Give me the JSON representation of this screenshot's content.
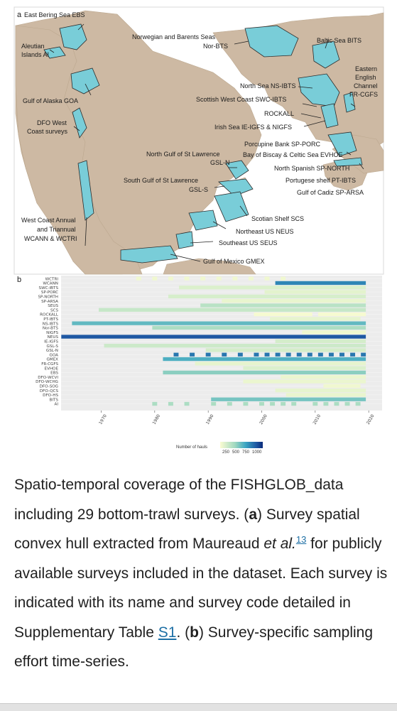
{
  "figure": {
    "panel_a": {
      "tag": "a",
      "title": "East Bering Sea EBS",
      "labels": [
        "Aleutian",
        "Islands AI",
        "Gulf of Alaska GOA",
        "DFO West",
        "Coast surveys",
        "West Coast Annual",
        "and Triannual",
        "WCANN & WCTRI",
        "Norwegian and Barents Seas",
        "Nor-BTS",
        "Baltic Sea BITS",
        "Eastern",
        "English",
        "Channel",
        "FR-CGFS",
        "North Sea NS-IBTS",
        "Scottish West Coast SWC-IBTS",
        "ROCKALL",
        "Irish Sea IE-IGFS & NIGFS",
        "Porcupine Bank SP-PORC",
        "North Gulf of St Lawrence",
        "GSL-N",
        "Bay of Biscay & Celtic Sea EVHOE",
        "North Spanish SP-NORTH",
        "Portugese shelf PT-IBTS",
        "South Gulf of St Lawrence",
        "GSL-S",
        "Gulf of Cadiz SP-ARSA",
        "Scotian Shelf SCS",
        "Northeast US NEUS",
        "Southeast US SEUS",
        "Gulf of Mexico GMEX"
      ],
      "colors": {
        "land": "#cdb9a3",
        "sea": "#ffffff",
        "hull": "#79cdd8",
        "hull_stroke": "#2b2b2b"
      }
    },
    "panel_b": {
      "tag": "b",
      "legend_title": "Number of hauls",
      "legend_ticks": [
        "250",
        "500",
        "750",
        "1000"
      ]
    }
  },
  "chart_data": {
    "type": "heatmap",
    "ylabel": "",
    "xlabel": "",
    "x_ticks": [
      "1970",
      "1980",
      "1990",
      "2000",
      "2010",
      "2020"
    ],
    "xlim": [
      1963,
      2022
    ],
    "colorscale": {
      "min": 0,
      "max": 1000,
      "low": "#fbfcd2",
      "mid": "#5ab9c2",
      "high": "#0b2a7a",
      "empty": "#ececec"
    },
    "surveys": [
      {
        "code": "WCTRI",
        "spans": [
          [
            1977,
            1977,
            40
          ],
          [
            1980,
            1980,
            40
          ],
          [
            1983,
            1983,
            40
          ],
          [
            1986,
            1986,
            40
          ],
          [
            1989,
            1989,
            40
          ],
          [
            1992,
            1992,
            40
          ],
          [
            1995,
            1995,
            40
          ],
          [
            1998,
            1998,
            40
          ],
          [
            2001,
            2001,
            40
          ],
          [
            2004,
            2004,
            40
          ]
        ]
      },
      {
        "code": "WCANN",
        "spans": [
          [
            2003,
            2019,
            700
          ]
        ]
      },
      {
        "code": "SWC-IBTS",
        "spans": [
          [
            1985,
            2019,
            120
          ]
        ]
      },
      {
        "code": "SP-PORC",
        "spans": [
          [
            2001,
            2019,
            90
          ]
        ]
      },
      {
        "code": "SP-NORTH",
        "spans": [
          [
            1983,
            2019,
            140
          ]
        ]
      },
      {
        "code": "SP-ARSA",
        "spans": [
          [
            1993,
            2019,
            70
          ]
        ]
      },
      {
        "code": "SEUS",
        "spans": [
          [
            1989,
            2019,
            250
          ]
        ]
      },
      {
        "code": "SCS",
        "spans": [
          [
            1970,
            2019,
            200
          ]
        ]
      },
      {
        "code": "ROCKALL",
        "spans": [
          [
            1999,
            2009,
            20
          ],
          [
            2011,
            2019,
            20
          ]
        ]
      },
      {
        "code": "PT-IBTS",
        "spans": [
          [
            2002,
            2018,
            80
          ]
        ]
      },
      {
        "code": "NS-IBTS",
        "spans": [
          [
            1965,
            2019,
            500
          ]
        ]
      },
      {
        "code": "Nor-BTS",
        "spans": [
          [
            1980,
            2019,
            300
          ]
        ]
      },
      {
        "code": "NIGFS",
        "spans": [
          [
            2008,
            2019,
            50
          ]
        ]
      },
      {
        "code": "NEUS",
        "spans": [
          [
            1963,
            2019,
            850
          ]
        ]
      },
      {
        "code": "IE-IGFS",
        "spans": [
          [
            2003,
            2019,
            150
          ]
        ]
      },
      {
        "code": "GSL-S",
        "spans": [
          [
            1971,
            2019,
            180
          ]
        ]
      },
      {
        "code": "GSL-N",
        "spans": [
          [
            1990,
            2019,
            150
          ]
        ]
      },
      {
        "code": "GOA",
        "spans": [
          [
            1984,
            1984,
            750
          ],
          [
            1987,
            1987,
            750
          ],
          [
            1990,
            1990,
            750
          ],
          [
            1993,
            1993,
            750
          ],
          [
            1996,
            1996,
            750
          ],
          [
            1999,
            1999,
            750
          ],
          [
            2001,
            2001,
            750
          ],
          [
            2003,
            2003,
            750
          ],
          [
            2005,
            2005,
            750
          ],
          [
            2007,
            2007,
            750
          ],
          [
            2009,
            2009,
            750
          ],
          [
            2011,
            2011,
            750
          ],
          [
            2013,
            2013,
            750
          ],
          [
            2015,
            2015,
            750
          ],
          [
            2017,
            2017,
            750
          ],
          [
            2019,
            2019,
            750
          ]
        ]
      },
      {
        "code": "GMEX",
        "spans": [
          [
            1982,
            2019,
            550
          ]
        ]
      },
      {
        "code": "FR-CGFS",
        "spans": [
          [
            1988,
            2019,
            80
          ]
        ]
      },
      {
        "code": "EVHOE",
        "spans": [
          [
            1997,
            2019,
            120
          ]
        ]
      },
      {
        "code": "EBS",
        "spans": [
          [
            1982,
            2019,
            400
          ]
        ]
      },
      {
        "code": "DFO-WCVI",
        "spans": [
          [
            2004,
            2019,
            60
          ]
        ]
      },
      {
        "code": "DFO-WCHG",
        "spans": [
          [
            1997,
            2019,
            60
          ]
        ]
      },
      {
        "code": "DFO-SOG",
        "spans": [
          [
            2012,
            2018,
            40
          ]
        ]
      },
      {
        "code": "DFO-QCS",
        "spans": [
          [
            2003,
            2019,
            80
          ]
        ]
      },
      {
        "code": "DFO-HS",
        "spans": [
          [
            2005,
            2019,
            70
          ]
        ]
      },
      {
        "code": "BITS",
        "spans": [
          [
            1991,
            2019,
            450
          ]
        ]
      },
      {
        "code": "AI",
        "spans": [
          [
            1980,
            1980,
            300
          ],
          [
            1983,
            1983,
            300
          ],
          [
            1986,
            1986,
            300
          ],
          [
            1991,
            1991,
            300
          ],
          [
            1994,
            1994,
            300
          ],
          [
            1997,
            1997,
            300
          ],
          [
            2000,
            2000,
            300
          ],
          [
            2002,
            2002,
            300
          ],
          [
            2004,
            2004,
            300
          ],
          [
            2006,
            2006,
            300
          ],
          [
            2010,
            2010,
            300
          ],
          [
            2012,
            2012,
            300
          ],
          [
            2014,
            2014,
            300
          ],
          [
            2016,
            2016,
            300
          ],
          [
            2018,
            2018,
            300
          ]
        ]
      }
    ]
  },
  "caption": {
    "s1": "Spatio-temporal coverage of the FISHGLOB_data including 29 bottom-trawl surveys. (",
    "a": "a",
    "s2": ") Survey spatial convex hull extracted from Maureaud ",
    "etal": "et al.",
    "ref": "13",
    "s3": " for publicly available surveys included in the dataset. Each survey is indicated with its name and survey code detailed in Supplementary Table ",
    "table_link": "S1",
    "s4": ". (",
    "b": "b",
    "s5": ") Survey-specific sampling effort time-series."
  }
}
